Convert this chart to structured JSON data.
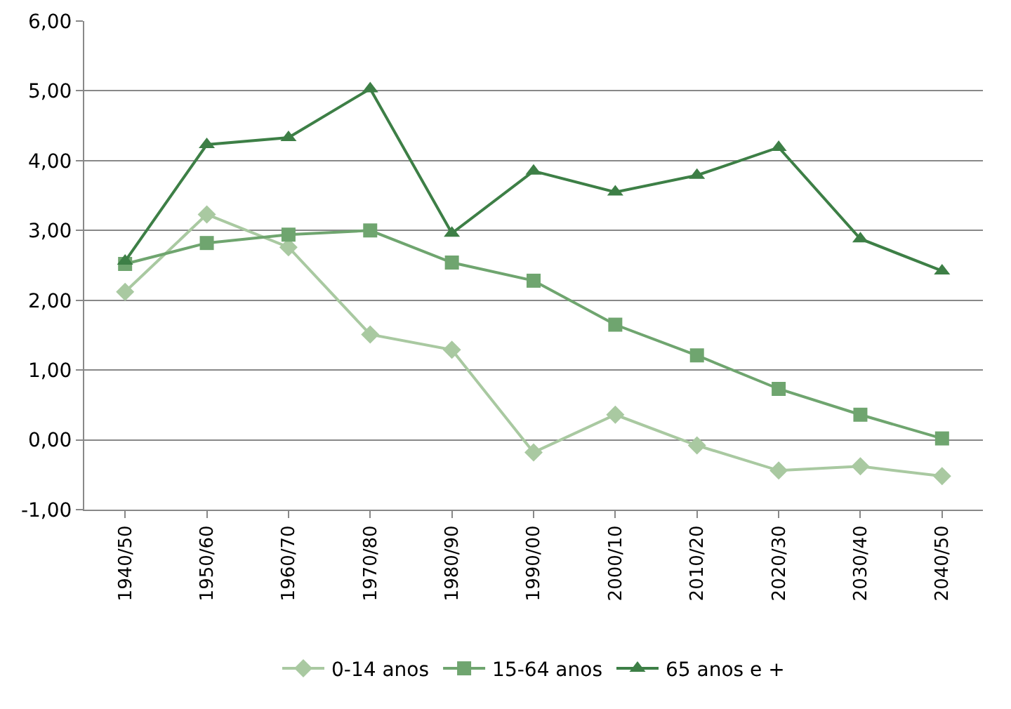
{
  "chart_data": {
    "type": "line",
    "categories": [
      "1940/50",
      "1950/60",
      "1960/70",
      "1970/80",
      "1980/90",
      "1990/00",
      "2000/10",
      "2010/20",
      "2020/30",
      "2030/40",
      "2040/50"
    ],
    "series": [
      {
        "name": "0-14 anos",
        "color": "#a9c9a1",
        "marker": "diamond",
        "values": [
          2.12,
          3.23,
          2.76,
          1.51,
          1.29,
          -0.18,
          0.36,
          -0.08,
          -0.44,
          -0.38,
          -0.52
        ]
      },
      {
        "name": "15-64 anos",
        "color": "#6fa56f",
        "marker": "square",
        "values": [
          2.52,
          2.82,
          2.94,
          3.0,
          2.54,
          2.28,
          1.65,
          1.21,
          0.73,
          0.36,
          0.02
        ]
      },
      {
        "name": "65 anos e +",
        "color": "#3d7f46",
        "marker": "triangle",
        "values": [
          2.56,
          4.23,
          4.33,
          5.03,
          2.96,
          3.85,
          3.55,
          3.79,
          4.19,
          2.88,
          2.42
        ]
      }
    ],
    "ylim": [
      -1,
      6
    ],
    "yticks": [
      {
        "value": -1,
        "label": "-1,00"
      },
      {
        "value": 0,
        "label": "0,00"
      },
      {
        "value": 1,
        "label": "1,00"
      },
      {
        "value": 2,
        "label": "2,00"
      },
      {
        "value": 3,
        "label": "3,00"
      },
      {
        "value": 4,
        "label": "4,00"
      },
      {
        "value": 5,
        "label": "5,00"
      },
      {
        "value": 6,
        "label": "6,00"
      }
    ],
    "grid": "y",
    "legend": "bottom"
  }
}
